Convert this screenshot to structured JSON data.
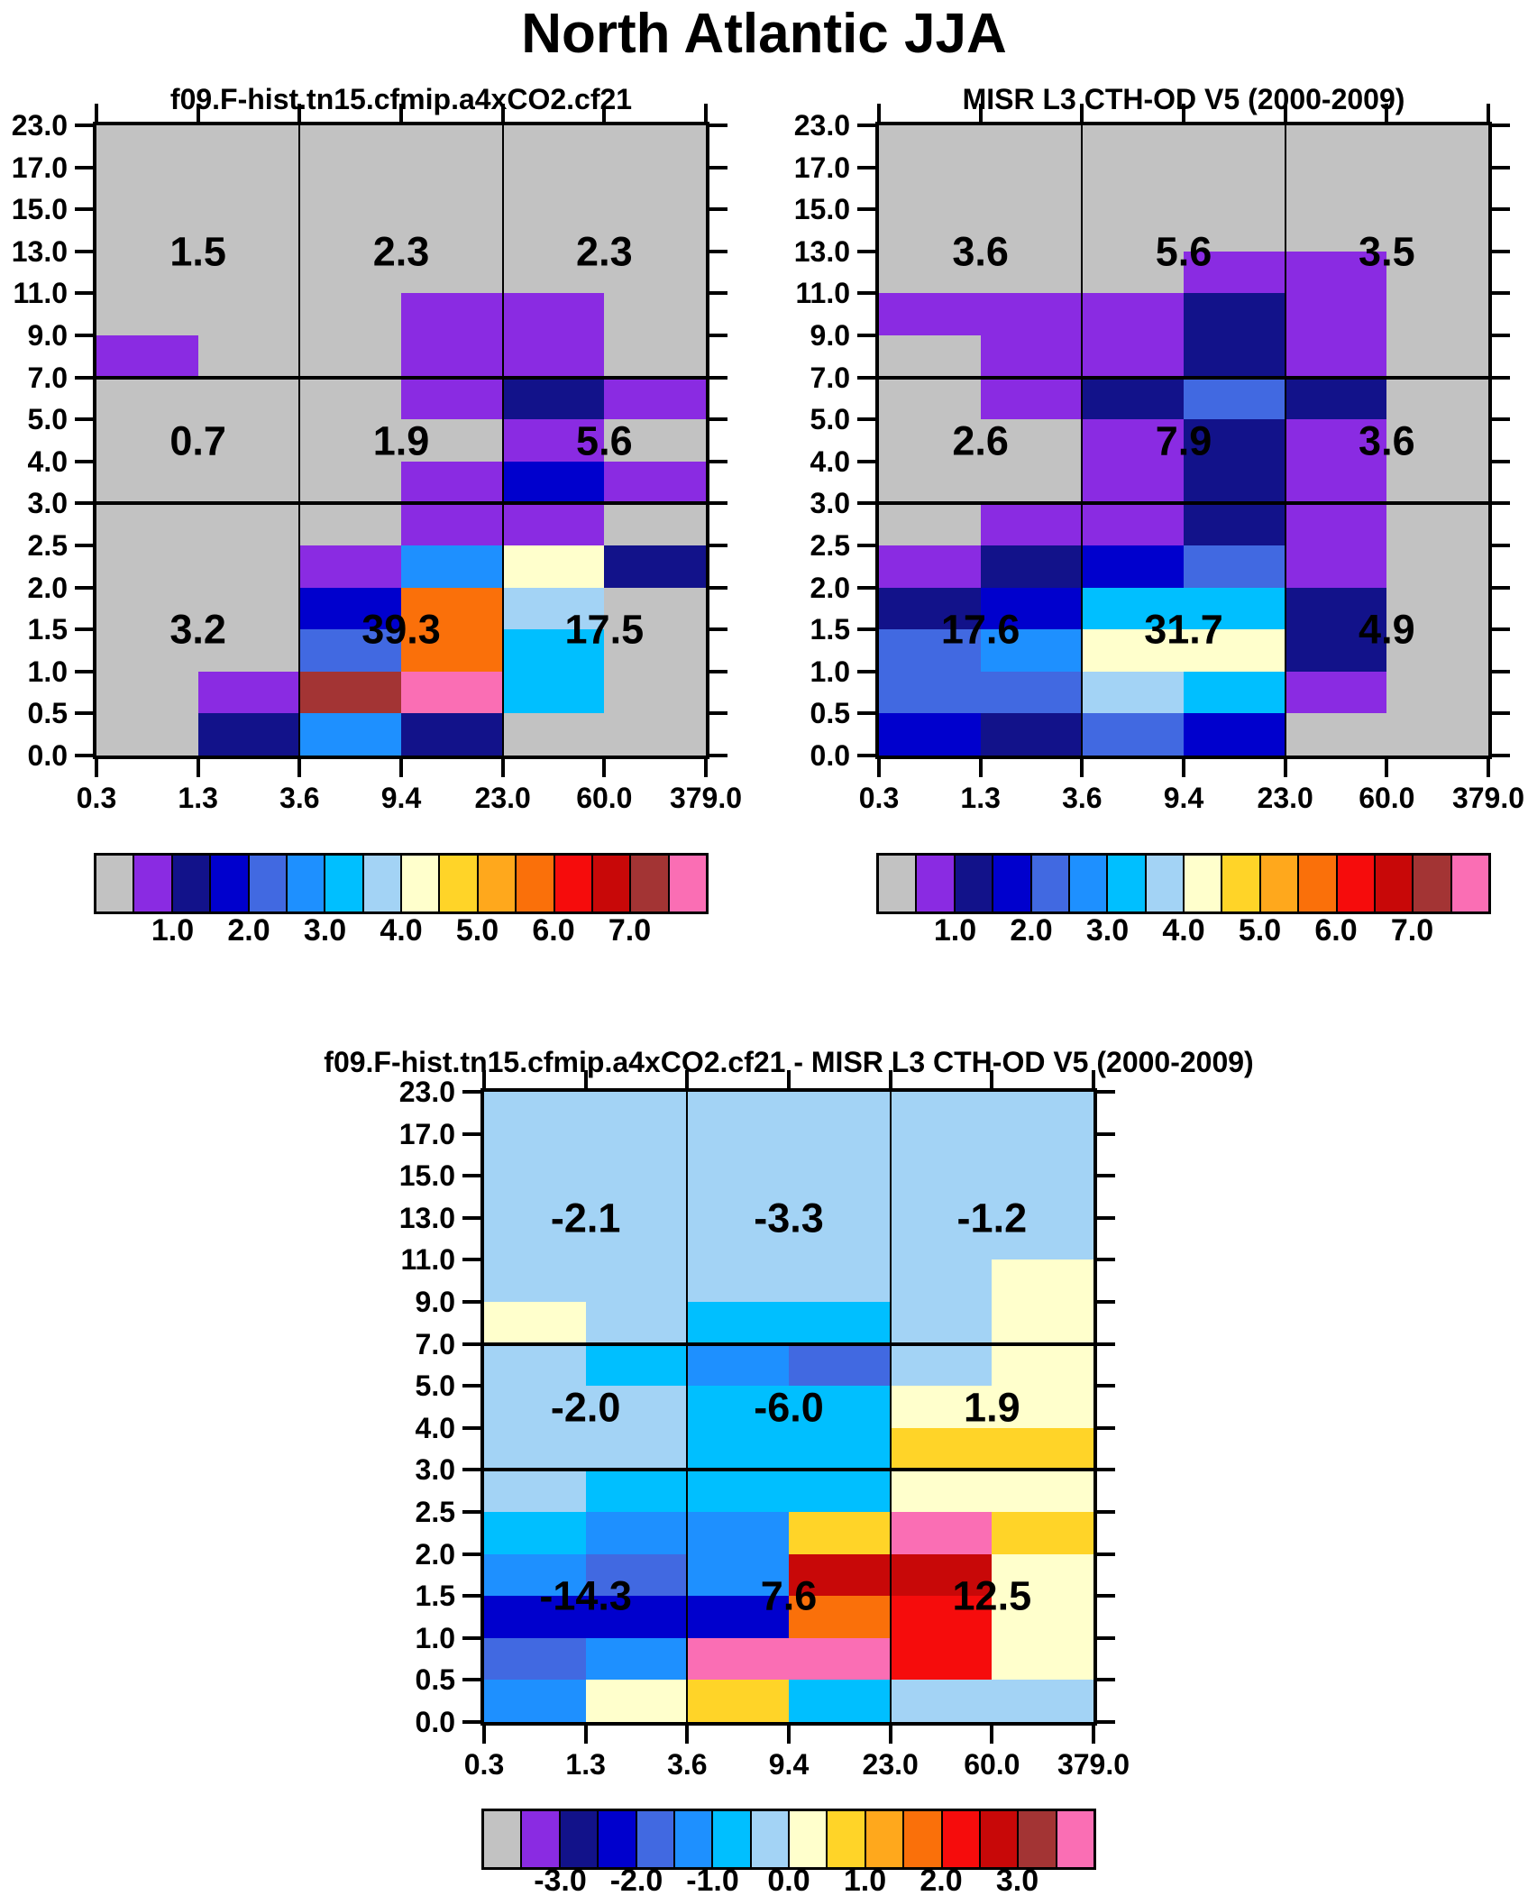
{
  "figure": {
    "suptitle": "North Atlantic JJA"
  },
  "chart_data": {
    "type": "heatmap",
    "title": "North Atlantic JJA",
    "description": "Cloud-top-height vs optical-depth joint histograms with region-mean overlays",
    "x_axis": {
      "tick_labels": [
        "0.3",
        "1.3",
        "3.6",
        "9.4",
        "23.0",
        "60.0",
        "379.0"
      ]
    },
    "y_axis": {
      "tick_labels": [
        "23.0",
        "17.0",
        "15.0",
        "13.0",
        "11.0",
        "9.0",
        "7.0",
        "5.0",
        "4.0",
        "3.0",
        "2.5",
        "2.0",
        "1.5",
        "1.0",
        "0.5",
        "0.0"
      ]
    },
    "palette": [
      "#C2C2C2",
      "#8A2BE2",
      "#12128A",
      "#0000CD",
      "#4169E1",
      "#1E90FF",
      "#00BFFF",
      "#A3D3F5",
      "#FFFFCC",
      "#FFD428",
      "#FFA81C",
      "#FA700A",
      "#F60C0C",
      "#C80808",
      "#A33434",
      "#FA6EB4"
    ],
    "colorbars": {
      "top_labels": [
        "1.0",
        "2.0",
        "3.0",
        "4.0",
        "5.0",
        "6.0",
        "7.0"
      ],
      "diff_labels": [
        "-3.0",
        "-2.0",
        "-1.0",
        "0.0",
        "1.0",
        "2.0",
        "3.0"
      ]
    },
    "panels": [
      {
        "id": "model",
        "title": "f09.F-hist.tn15.cfmip.a4xCO2.cf21",
        "region_means": [
          [
            "1.5",
            "2.3",
            "2.3"
          ],
          [
            "0.7",
            "1.9",
            "5.6"
          ],
          [
            "3.2",
            "39.3",
            "17.5"
          ]
        ],
        "grid": [
          [
            0,
            0,
            0,
            0,
            0,
            0
          ],
          [
            0,
            0,
            0,
            0,
            0,
            0
          ],
          [
            0,
            0,
            0,
            0,
            0,
            0
          ],
          [
            0,
            0,
            0,
            0,
            0,
            0
          ],
          [
            0,
            0,
            0,
            1,
            1,
            0
          ],
          [
            1,
            0,
            0,
            1,
            1,
            0
          ],
          [
            0,
            0,
            0,
            1,
            2,
            1
          ],
          [
            0,
            0,
            0,
            0,
            1,
            0
          ],
          [
            0,
            0,
            0,
            1,
            3,
            1
          ],
          [
            0,
            0,
            0,
            1,
            1,
            0
          ],
          [
            0,
            0,
            1,
            5,
            8,
            2
          ],
          [
            0,
            0,
            3,
            11,
            7,
            0
          ],
          [
            0,
            0,
            4,
            11,
            6,
            0
          ],
          [
            0,
            1,
            14,
            15,
            6,
            0
          ],
          [
            0,
            2,
            5,
            2,
            0,
            0
          ]
        ]
      },
      {
        "id": "misr",
        "title": "MISR L3 CTH-OD V5 (2000-2009)",
        "region_means": [
          [
            "3.6",
            "5.6",
            "3.5"
          ],
          [
            "2.6",
            "7.9",
            "3.6"
          ],
          [
            "17.6",
            "31.7",
            "4.9"
          ]
        ],
        "grid": [
          [
            0,
            0,
            0,
            0,
            0,
            0
          ],
          [
            0,
            0,
            0,
            0,
            0,
            0
          ],
          [
            0,
            0,
            0,
            0,
            0,
            0
          ],
          [
            0,
            0,
            0,
            1,
            1,
            0
          ],
          [
            1,
            1,
            1,
            2,
            1,
            0
          ],
          [
            0,
            1,
            1,
            2,
            1,
            0
          ],
          [
            0,
            1,
            2,
            4,
            2,
            0
          ],
          [
            0,
            0,
            1,
            2,
            1,
            0
          ],
          [
            0,
            0,
            1,
            2,
            1,
            0
          ],
          [
            0,
            1,
            1,
            2,
            1,
            0
          ],
          [
            1,
            2,
            3,
            4,
            1,
            0
          ],
          [
            2,
            3,
            6,
            6,
            2,
            0
          ],
          [
            4,
            5,
            8,
            8,
            2,
            0
          ],
          [
            4,
            4,
            7,
            6,
            1,
            0
          ],
          [
            3,
            2,
            4,
            3,
            0,
            0
          ]
        ]
      },
      {
        "id": "diff",
        "title": "f09.F-hist.tn15.cfmip.a4xCO2.cf21 - MISR L3 CTH-OD V5 (2000-2009)",
        "region_means": [
          [
            "-2.1",
            "-3.3",
            "-1.2"
          ],
          [
            "-2.0",
            "-6.0",
            "1.9"
          ],
          [
            "-14.3",
            "7.6",
            "12.5"
          ]
        ],
        "grid": [
          [
            7,
            7,
            7,
            7,
            7,
            7
          ],
          [
            7,
            7,
            7,
            7,
            7,
            7
          ],
          [
            7,
            7,
            7,
            7,
            7,
            7
          ],
          [
            7,
            7,
            7,
            7,
            7,
            7
          ],
          [
            7,
            7,
            7,
            7,
            7,
            8
          ],
          [
            8,
            7,
            6,
            6,
            7,
            8
          ],
          [
            7,
            6,
            5,
            4,
            7,
            8
          ],
          [
            7,
            7,
            6,
            6,
            8,
            8
          ],
          [
            7,
            7,
            6,
            6,
            9,
            9
          ],
          [
            7,
            6,
            6,
            6,
            8,
            8
          ],
          [
            6,
            5,
            5,
            9,
            15,
            9
          ],
          [
            5,
            4,
            5,
            13,
            13,
            8
          ],
          [
            3,
            3,
            3,
            11,
            12,
            8
          ],
          [
            4,
            5,
            15,
            15,
            12,
            8
          ],
          [
            5,
            8,
            9,
            6,
            7,
            7
          ]
        ]
      }
    ]
  }
}
